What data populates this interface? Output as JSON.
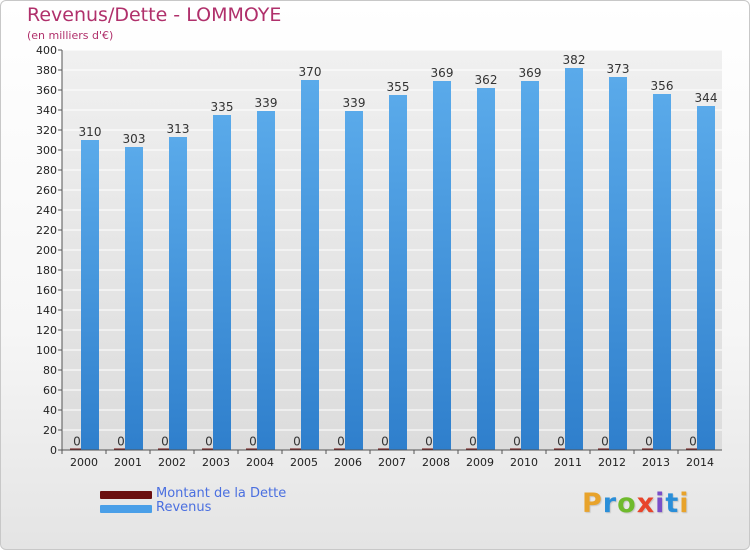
{
  "header": {
    "title": "Revenus/Dette - LOMMOYE",
    "subtitle": "(en milliers d'€)"
  },
  "legend": {
    "items": [
      {
        "label": "Montant de la Dette",
        "color": "#6b0f0f"
      },
      {
        "label": "Revenus",
        "color": "#4a9fe8"
      }
    ]
  },
  "logo": {
    "text": "Proxiti",
    "letter_colors": [
      "#e8a32b",
      "#2a8ed8",
      "#6fba2c",
      "#e8452b",
      "#7a4fc8",
      "#2a8ed8",
      "#e8a32b"
    ]
  },
  "colors": {
    "title": "#b0306b",
    "bar_top": "#5aaaea",
    "bar_bottom": "#2f7fcc",
    "debt": "#6b0f0f",
    "axis_text": "#222222",
    "grid": "#ffffff"
  },
  "chart_data": {
    "type": "bar",
    "categories": [
      "2000",
      "2001",
      "2002",
      "2003",
      "2004",
      "2005",
      "2006",
      "2007",
      "2008",
      "2009",
      "2010",
      "2011",
      "2012",
      "2013",
      "2014"
    ],
    "series": [
      {
        "name": "Montant de la Dette",
        "values": [
          0,
          0,
          0,
          0,
          0,
          0,
          0,
          0,
          0,
          0,
          0,
          0,
          0,
          0,
          0
        ]
      },
      {
        "name": "Revenus",
        "values": [
          310,
          303,
          313,
          335,
          339,
          370,
          339,
          355,
          369,
          362,
          369,
          382,
          373,
          356,
          344
        ]
      }
    ],
    "title": "Revenus/Dette - LOMMOYE",
    "subtitle": "(en milliers d'€)",
    "xlabel": "",
    "ylabel": "",
    "ylim": [
      0,
      400
    ],
    "ytick_step": 20,
    "grid": true,
    "legend_position": "bottom-left"
  }
}
